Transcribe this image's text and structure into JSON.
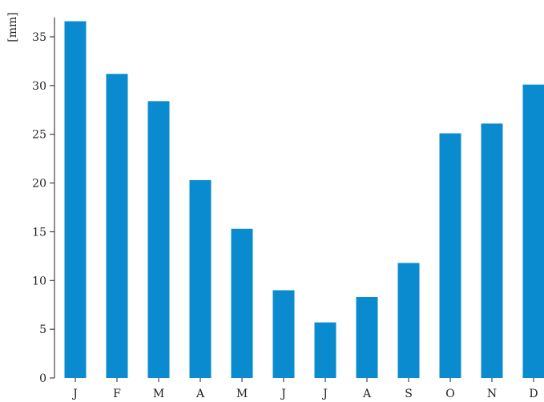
{
  "chart_data": {
    "type": "bar",
    "title": "",
    "xlabel": "",
    "ylabel": "[mm]",
    "categories": [
      "J",
      "F",
      "M",
      "A",
      "M",
      "J",
      "J",
      "A",
      "S",
      "O",
      "N",
      "D"
    ],
    "values": [
      36.6,
      31.2,
      28.4,
      20.3,
      15.3,
      9.0,
      5.7,
      8.3,
      11.8,
      25.1,
      26.1,
      30.1
    ],
    "ylim": [
      0,
      37
    ],
    "yticks": [
      0,
      5,
      10,
      15,
      20,
      25,
      30,
      35
    ],
    "grid": false,
    "legend": "none",
    "bar_color": "#0a8bcf",
    "axis_color": "#222222"
  }
}
